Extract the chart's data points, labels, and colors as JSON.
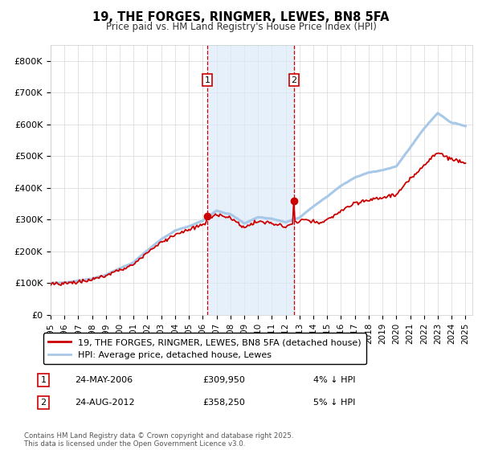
{
  "title": "19, THE FORGES, RINGMER, LEWES, BN8 5FA",
  "subtitle": "Price paid vs. HM Land Registry's House Price Index (HPI)",
  "sale1_date": "24-MAY-2006",
  "sale1_price": 309950,
  "sale1_label": "1",
  "sale1_pct": "4% ↓ HPI",
  "sale2_date": "24-AUG-2012",
  "sale2_price": 358250,
  "sale2_label": "2",
  "sale2_pct": "5% ↓ HPI",
  "legend_line1": "19, THE FORGES, RINGMER, LEWES, BN8 5FA (detached house)",
  "legend_line2": "HPI: Average price, detached house, Lewes",
  "footnote": "Contains HM Land Registry data © Crown copyright and database right 2025.\nThis data is licensed under the Open Government Licence v3.0.",
  "hpi_color": "#a8c8e8",
  "price_color": "#cc0000",
  "shade_color": "#daeaf8",
  "vline_color": "#cc0000",
  "ylabel_ticks": [
    "£0",
    "£100K",
    "£200K",
    "£300K",
    "£400K",
    "£500K",
    "£600K",
    "£700K",
    "£800K"
  ],
  "ytick_vals": [
    0,
    100000,
    200000,
    300000,
    400000,
    500000,
    600000,
    700000,
    800000
  ],
  "ylim": [
    0,
    850000
  ],
  "xlim_start": 1995.0,
  "xlim_end": 2025.5
}
